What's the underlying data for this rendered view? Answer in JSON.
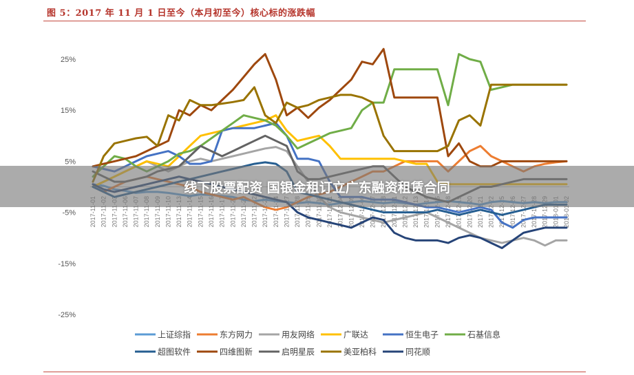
{
  "figure": {
    "title": "图 5：2017 年 11 月 1 日至今（本月初至今）核心标的涨跌幅"
  },
  "banner": {
    "text": "线下股票配资 国银金租订立广东融资租赁合同"
  },
  "chart_data": {
    "type": "line",
    "title": "",
    "xlabel": "",
    "ylabel": "",
    "ylim": [
      -25,
      30
    ],
    "yticks": [
      25,
      15,
      5,
      -5,
      -15,
      -25
    ],
    "ytick_labels": [
      "25%",
      "15%",
      "5%",
      "-5%",
      "-15%",
      "-25%"
    ],
    "grid": false,
    "legend": "bottom",
    "x": [
      "2017-11-01",
      "2017-11-02",
      "2017-11-03",
      "2017-11-06",
      "2017-11-07",
      "2017-11-08",
      "2017-11-09",
      "2017-11-10",
      "2017-11-13",
      "2017-11-14",
      "2017-11-15",
      "2017-11-16",
      "2017-11-17",
      "2017-11-20",
      "2017-11-21",
      "2017-11-22",
      "2017-11-23",
      "2017-11-24",
      "2017-11-27",
      "2017-11-28",
      "2017-11-29",
      "2017-11-30",
      "2017-12-01",
      "2017-12-04",
      "2017-12-05",
      "2017-12-06",
      "2017-12-07",
      "2017-12-08",
      "2017-12-11",
      "2017-12-12",
      "2017-12-13",
      "2017-12-14",
      "2017-12-15",
      "2017-12-18",
      "2017-12-19",
      "2017-12-20",
      "2017-12-21",
      "2017-12-22",
      "2017-12-25",
      "2017-12-26",
      "2017-12-27",
      "2017-12-28",
      "2017-12-29",
      "2018-01-01",
      "2018-01-02"
    ],
    "x_tick_labels": [
      "2017-11-01",
      "2017-11-02",
      "2017-11-03",
      "2017-11-06",
      "2017-11-07",
      "2017-11-08",
      "2017-11-09",
      "2017-11-10",
      "2017-11-13",
      "2017-11-14",
      "2017-11-15",
      "2017-11-16",
      "2017-11-17",
      "2017-11-20",
      "2017-11-21",
      "2017-11-22",
      "2017-11-23",
      "2017-11-24",
      "2017-11-27",
      "2017-11-28",
      "2017-11-29",
      "2017-11-30",
      "2017-12-01",
      "2017-12-04",
      "2017-12-05",
      "2017-12-06",
      "2017-12-07",
      "2017-12-08",
      "2017-12-11",
      "2017-12-12",
      "2017-12-13",
      "2017-12-14",
      "2017-12-15",
      "2017-12-18",
      "2017-12-19",
      "2017-12-20",
      "2017-12-21",
      "2017-12-22",
      "2017-12-25",
      "2017-12-26",
      "2017-12-27",
      "2017-12-28",
      "2017-12-29",
      "2018-01-01",
      "2018-01-02"
    ],
    "series": [
      {
        "name": "上证综指",
        "color": "#5b9bd5",
        "values": [
          0.5,
          0.2,
          -0.5,
          -0.8,
          -1.2,
          -1.0,
          -1.0,
          -1.2,
          -1.5,
          -1.8,
          -1.5,
          -1.6,
          -1.8,
          -2.0,
          -2.5,
          -2.8,
          -2.5,
          -2.8,
          -3.0,
          -3.2,
          -3.0,
          -3.2,
          -3.5,
          -3.2,
          -3.0,
          -2.8,
          -3.0,
          -3.2,
          -3.0,
          -3.2,
          -3.5,
          -3.2,
          -3.0,
          -2.8,
          -3.0,
          -3.2,
          -3.5,
          -3.0,
          -2.8,
          -3.0,
          -3.2,
          -3.0,
          -3.2,
          -3.0,
          -3.0
        ]
      },
      {
        "name": "东方网力",
        "color": "#ed7d31",
        "values": [
          0.0,
          -1.0,
          0.0,
          1.0,
          1.5,
          2.0,
          1.5,
          1.0,
          0.5,
          0.0,
          -1.0,
          -1.5,
          -2.0,
          -2.5,
          -2.0,
          -3.0,
          -4.0,
          -4.5,
          -4.0,
          -3.0,
          -2.0,
          -1.5,
          -1.0,
          0.0,
          1.0,
          2.0,
          3.0,
          3.0,
          4.0,
          5.0,
          5.0,
          5.0,
          5.0,
          3.0,
          5.0,
          7.0,
          8.0,
          6.0,
          5.0,
          4.0,
          3.0,
          4.0,
          4.5,
          4.8,
          5.0
        ]
      },
      {
        "name": "用友网络",
        "color": "#a5a5a5",
        "values": [
          0.0,
          1.0,
          2.0,
          3.0,
          4.0,
          5.0,
          4.0,
          3.0,
          4.0,
          5.0,
          5.5,
          5.0,
          5.5,
          6.0,
          6.5,
          7.0,
          7.5,
          7.8,
          7.0,
          4.0,
          1.0,
          -2.0,
          -4.0,
          -5.0,
          -5.5,
          -6.0,
          -6.5,
          -7.0,
          -6.5,
          -6.0,
          -5.5,
          -5.0,
          -6.0,
          -7.0,
          -8.0,
          -9.0,
          -10.0,
          -10.5,
          -11.0,
          -10.5,
          -10.0,
          -10.5,
          -11.5,
          -10.5,
          -10.5
        ]
      },
      {
        "name": "广联达",
        "color": "#ffc000",
        "values": [
          0.0,
          1.0,
          2.0,
          3.0,
          4.0,
          5.0,
          4.5,
          4.0,
          6.0,
          8.0,
          10.0,
          10.5,
          11.0,
          11.5,
          12.0,
          12.5,
          13.0,
          14.0,
          11.0,
          9.0,
          9.5,
          10.0,
          8.0,
          5.5,
          5.5,
          5.5,
          5.5,
          5.5,
          5.5,
          5.0,
          4.5,
          4.5,
          1.0,
          0.5,
          0.5,
          0.5,
          0.5,
          0.5,
          0.5,
          0.5,
          0.5,
          0.5,
          0.5,
          0.5,
          0.5
        ]
      },
      {
        "name": "恒生电子",
        "color": "#4472c4",
        "values": [
          4.0,
          3.5,
          3.0,
          4.0,
          5.0,
          6.0,
          6.5,
          7.0,
          6.0,
          4.5,
          4.5,
          5.0,
          11.0,
          11.5,
          11.5,
          11.5,
          12.0,
          12.5,
          10.0,
          5.5,
          5.5,
          5.0,
          1.0,
          -2.0,
          -2.0,
          -2.0,
          -2.5,
          -2.5,
          -2.5,
          -3.0,
          -3.5,
          -4.0,
          -4.0,
          -4.5,
          -5.0,
          -4.5,
          -4.0,
          -4.5,
          -7.0,
          -8.0,
          -6.5,
          -6.0,
          -6.0,
          -6.0,
          -6.0
        ]
      },
      {
        "name": "石基信息",
        "color": "#70ad47",
        "values": [
          2.0,
          4.0,
          6.0,
          5.5,
          4.0,
          3.0,
          4.0,
          5.0,
          6.5,
          7.0,
          8.0,
          9.5,
          11.0,
          12.5,
          14.0,
          13.5,
          13.0,
          12.0,
          10.0,
          7.5,
          8.5,
          9.5,
          10.5,
          11.0,
          11.5,
          15.0,
          16.5,
          16.5,
          23.0,
          23.0,
          23.0,
          23.0,
          23.0,
          16.0,
          26.0,
          25.0,
          24.5,
          19.0,
          19.5,
          20.0,
          20.0,
          20.0,
          20.0,
          20.0,
          20.0
        ]
      },
      {
        "name": "超图软件",
        "color": "#255e91",
        "values": [
          0.0,
          -1.0,
          -2.0,
          -1.5,
          -1.0,
          -0.5,
          0.0,
          0.5,
          1.0,
          1.5,
          2.0,
          2.5,
          3.0,
          3.5,
          4.0,
          4.5,
          4.8,
          4.5,
          3.0,
          -1.0,
          -1.5,
          -2.0,
          -2.5,
          -3.0,
          -3.5,
          -4.0,
          -4.5,
          -5.0,
          -5.0,
          -5.0,
          -5.0,
          -5.0,
          -4.5,
          -5.0,
          -5.5,
          -5.0,
          -4.5,
          -5.0,
          -5.5,
          -5.0,
          -4.5,
          -4.0,
          -3.5,
          -3.5,
          -3.5
        ]
      },
      {
        "name": "四维图新",
        "color": "#9e480e",
        "values": [
          4.0,
          4.5,
          5.0,
          5.5,
          6.0,
          7.0,
          8.0,
          9.0,
          15.0,
          14.0,
          16.0,
          15.0,
          17.0,
          19.0,
          21.5,
          24.0,
          26.0,
          21.0,
          14.0,
          15.5,
          13.5,
          15.5,
          17.0,
          19.0,
          21.0,
          24.5,
          24.0,
          27.0,
          17.5,
          17.5,
          17.5,
          17.5,
          17.5,
          6.0,
          8.5,
          5.0,
          4.0,
          4.0,
          5.0,
          5.0,
          5.0,
          5.0,
          5.0,
          5.0,
          5.0
        ]
      },
      {
        "name": "启明星辰",
        "color": "#636363",
        "values": [
          3.0,
          2.0,
          1.0,
          1.0,
          1.5,
          2.0,
          3.0,
          3.5,
          4.0,
          6.0,
          8.0,
          7.0,
          6.0,
          7.0,
          8.0,
          9.0,
          10.0,
          9.0,
          8.0,
          3.0,
          1.5,
          1.5,
          2.0,
          2.5,
          3.0,
          3.5,
          4.0,
          4.0,
          2.0,
          0.0,
          -1.0,
          -2.0,
          -2.5,
          -3.0,
          -2.0,
          -1.0,
          0.0,
          0.0,
          0.5,
          1.0,
          1.5,
          1.5,
          1.5,
          1.5,
          1.5
        ]
      },
      {
        "name": "美亚柏科",
        "color": "#997300",
        "values": [
          1.0,
          6.0,
          8.5,
          9.0,
          9.5,
          9.8,
          8.0,
          14.0,
          13.0,
          17.0,
          16.0,
          16.0,
          16.3,
          16.6,
          17.0,
          19.5,
          14.0,
          12.5,
          16.5,
          15.5,
          16.0,
          17.0,
          17.5,
          18.0,
          18.0,
          17.5,
          16.5,
          10.0,
          7.0,
          7.0,
          7.0,
          7.0,
          7.0,
          8.0,
          13.0,
          14.0,
          12.0,
          20.0,
          20.0,
          20.0,
          20.0,
          20.0,
          20.0,
          20.0,
          20.0
        ]
      },
      {
        "name": "同花顺",
        "color": "#264478",
        "values": [
          0.5,
          -0.5,
          -1.0,
          -0.5,
          0.0,
          0.5,
          1.0,
          1.5,
          2.0,
          1.5,
          1.0,
          0.5,
          0.0,
          -0.5,
          -1.0,
          -1.5,
          -2.0,
          -2.5,
          -3.0,
          -5.0,
          -6.0,
          -6.5,
          -7.0,
          -7.5,
          -8.0,
          -7.0,
          -6.0,
          -6.5,
          -9.0,
          -10.0,
          -10.5,
          -10.5,
          -10.5,
          -11.0,
          -10.0,
          -9.5,
          -10.0,
          -11.0,
          -12.0,
          -10.5,
          -9.0,
          -8.5,
          -8.0,
          -8.0,
          -8.0
        ]
      }
    ]
  }
}
